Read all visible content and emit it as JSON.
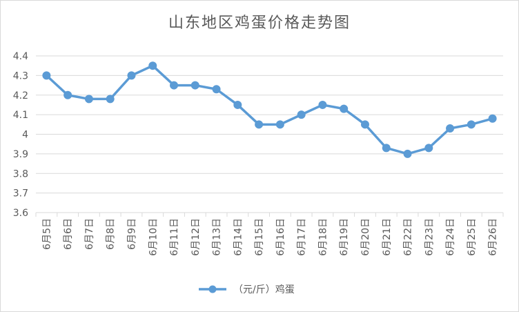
{
  "chart_data": {
    "type": "line",
    "title": "山东地区鸡蛋价格走势图",
    "categories": [
      "6月5日",
      "6月6日",
      "6月7日",
      "6月8日",
      "6月9日",
      "6月10日",
      "6月11日",
      "6月12日",
      "6月13日",
      "6月14日",
      "6月15日",
      "6月16日",
      "6月17日",
      "6月18日",
      "6月19日",
      "6月20日",
      "6月21日",
      "6月22日",
      "6月23日",
      "6月24日",
      "6月25日",
      "6月26日"
    ],
    "series": [
      {
        "name": "（元/斤）鸡蛋",
        "values": [
          4.3,
          4.2,
          4.18,
          4.18,
          4.3,
          4.35,
          4.25,
          4.25,
          4.23,
          4.15,
          4.05,
          4.05,
          4.1,
          4.15,
          4.13,
          4.05,
          3.93,
          3.9,
          3.93,
          4.03,
          4.05,
          4.08
        ]
      }
    ],
    "y_ticks": [
      "3.6",
      "3.7",
      "3.8",
      "3.9",
      "4",
      "4.1",
      "4.2",
      "4.3",
      "4.4"
    ],
    "ylim": [
      3.6,
      4.4
    ],
    "grid": true,
    "legend_position": "bottom",
    "series_color": "#5b9bd5",
    "grid_color": "#d9d9d9",
    "text_color": "#595959"
  }
}
